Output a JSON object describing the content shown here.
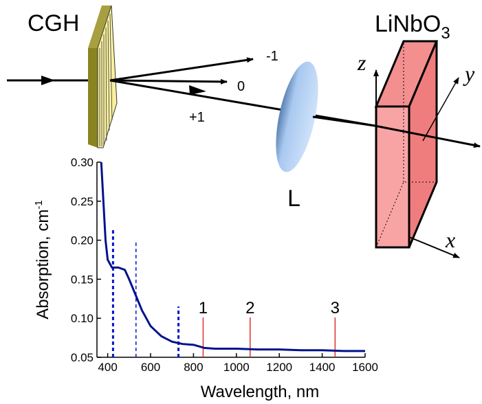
{
  "chart_data": {
    "type": "line",
    "x_label": "Wavelength, nm",
    "y_label": "Absorption, cm",
    "y_label_sup": "-1",
    "x": [
      370,
      380,
      390,
      400,
      420,
      450,
      480,
      500,
      530,
      560,
      600,
      650,
      700,
      750,
      800,
      850,
      900,
      1000,
      1100,
      1200,
      1300,
      1400,
      1500,
      1600
    ],
    "series": [
      {
        "color": "#00128c",
        "values": [
          0.3,
          0.25,
          0.2,
          0.175,
          0.165,
          0.165,
          0.162,
          0.15,
          0.13,
          0.11,
          0.09,
          0.077,
          0.07,
          0.067,
          0.066,
          0.062,
          0.061,
          0.061,
          0.06,
          0.06,
          0.059,
          0.059,
          0.058,
          0.058
        ]
      }
    ],
    "dashed_lines": {
      "color": "#0a14c8",
      "x": [
        425,
        532,
        730
      ],
      "top": [
        0.215,
        0.198,
        0.115
      ]
    },
    "markers": {
      "color": "#e0302a",
      "x": [
        845,
        1064,
        1460
      ],
      "top": [
        0.101,
        0.101,
        0.101
      ],
      "labels": [
        "1",
        "2",
        "3"
      ]
    },
    "xlim": [
      350,
      1600
    ],
    "ylim": [
      0.05,
      0.3
    ],
    "xticks": [
      400,
      600,
      800,
      1000,
      1200,
      1400,
      1600
    ],
    "yticks": [
      0.05,
      {
        "value": 0.1,
        "label": "0.10"
      },
      0.15,
      {
        "value": 0.2,
        "label": "0.20"
      },
      0.25,
      {
        "value": 0.3,
        "label": "0.30"
      }
    ]
  },
  "diagram": {
    "grating": "CGH",
    "orders": [
      "-1",
      "0",
      "+1"
    ],
    "lens": "L",
    "crystal": "LiNbO",
    "crystal_sub": "3",
    "axes": [
      "z",
      "y",
      "x"
    ]
  }
}
